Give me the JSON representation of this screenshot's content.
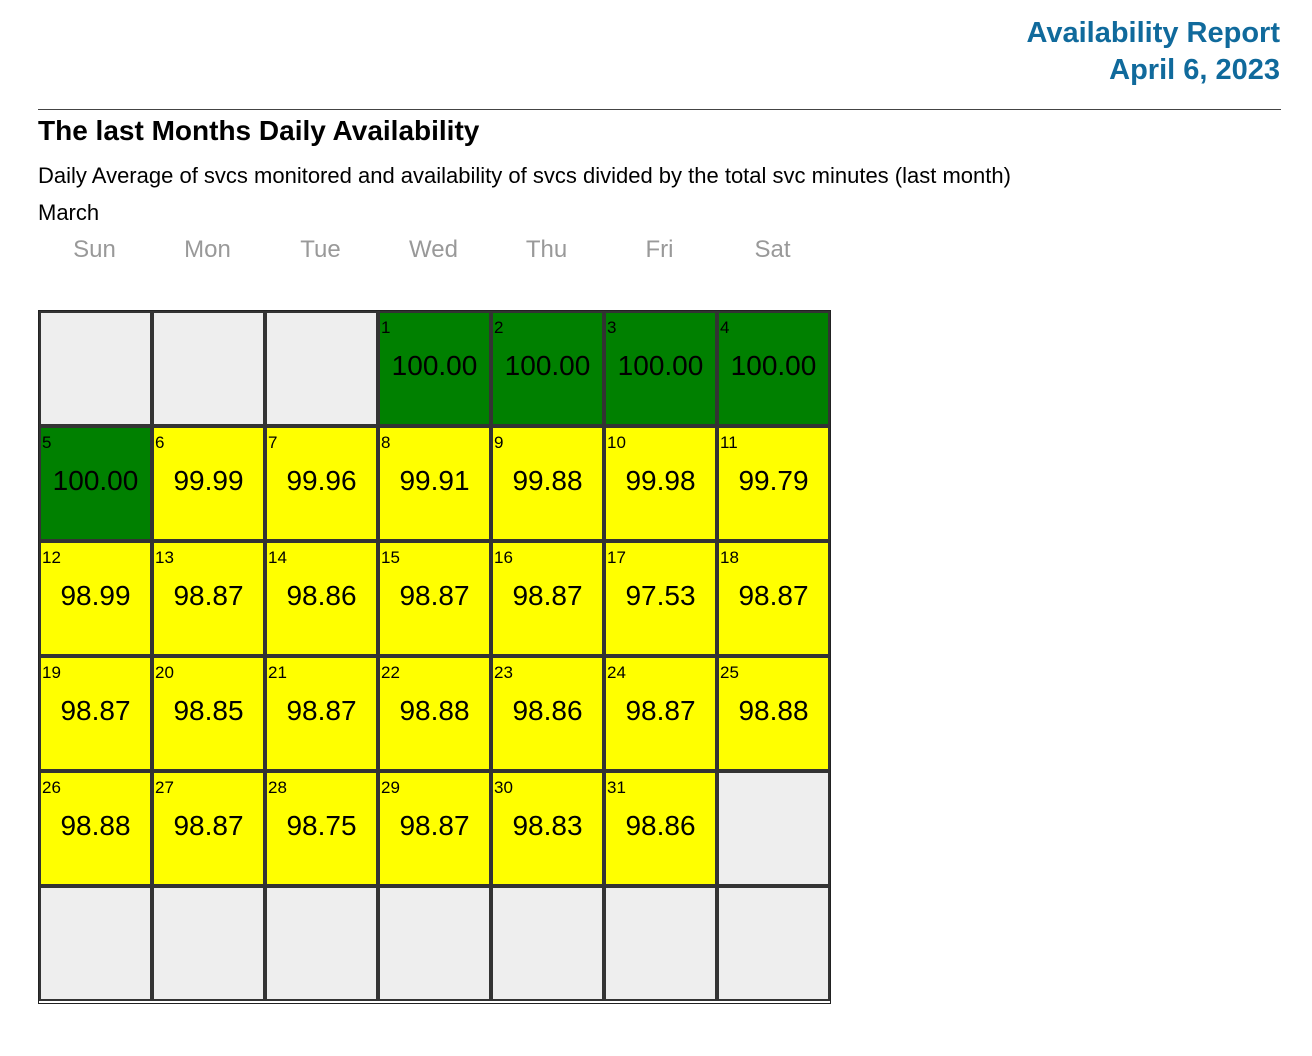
{
  "header": {
    "title": "Availability Report",
    "date": "April 6, 2023"
  },
  "section": {
    "title": "The last Months Daily Availability",
    "description": "Daily Average of svcs monitored and availability of svcs divided by the total svc minutes (last month)",
    "month": "March"
  },
  "calendar": {
    "weekdays": [
      "Sun",
      "Mon",
      "Tue",
      "Wed",
      "Thu",
      "Fri",
      "Sat"
    ],
    "weeks": [
      [
        null,
        null,
        null,
        {
          "day": 1,
          "value": "100.00",
          "color": "#008000"
        },
        {
          "day": 2,
          "value": "100.00",
          "color": "#008000"
        },
        {
          "day": 3,
          "value": "100.00",
          "color": "#008000"
        },
        {
          "day": 4,
          "value": "100.00",
          "color": "#008000"
        }
      ],
      [
        {
          "day": 5,
          "value": "100.00",
          "color": "#008000"
        },
        {
          "day": 6,
          "value": "99.99",
          "color": "#ffff00"
        },
        {
          "day": 7,
          "value": "99.96",
          "color": "#ffff00"
        },
        {
          "day": 8,
          "value": "99.91",
          "color": "#ffff00"
        },
        {
          "day": 9,
          "value": "99.88",
          "color": "#ffff00"
        },
        {
          "day": 10,
          "value": "99.98",
          "color": "#ffff00"
        },
        {
          "day": 11,
          "value": "99.79",
          "color": "#ffff00"
        }
      ],
      [
        {
          "day": 12,
          "value": "98.99",
          "color": "#ffff00"
        },
        {
          "day": 13,
          "value": "98.87",
          "color": "#ffff00"
        },
        {
          "day": 14,
          "value": "98.86",
          "color": "#ffff00"
        },
        {
          "day": 15,
          "value": "98.87",
          "color": "#ffff00"
        },
        {
          "day": 16,
          "value": "98.87",
          "color": "#ffff00"
        },
        {
          "day": 17,
          "value": "97.53",
          "color": "#ffff00"
        },
        {
          "day": 18,
          "value": "98.87",
          "color": "#ffff00"
        }
      ],
      [
        {
          "day": 19,
          "value": "98.87",
          "color": "#ffff00"
        },
        {
          "day": 20,
          "value": "98.85",
          "color": "#ffff00"
        },
        {
          "day": 21,
          "value": "98.87",
          "color": "#ffff00"
        },
        {
          "day": 22,
          "value": "98.88",
          "color": "#ffff00"
        },
        {
          "day": 23,
          "value": "98.86",
          "color": "#ffff00"
        },
        {
          "day": 24,
          "value": "98.87",
          "color": "#ffff00"
        },
        {
          "day": 25,
          "value": "98.88",
          "color": "#ffff00"
        }
      ],
      [
        {
          "day": 26,
          "value": "98.88",
          "color": "#ffff00"
        },
        {
          "day": 27,
          "value": "98.87",
          "color": "#ffff00"
        },
        {
          "day": 28,
          "value": "98.75",
          "color": "#ffff00"
        },
        {
          "day": 29,
          "value": "98.87",
          "color": "#ffff00"
        },
        {
          "day": 30,
          "value": "98.83",
          "color": "#ffff00"
        },
        {
          "day": 31,
          "value": "98.86",
          "color": "#ffff00"
        },
        null
      ],
      [
        null,
        null,
        null,
        null,
        null,
        null,
        null
      ]
    ]
  }
}
